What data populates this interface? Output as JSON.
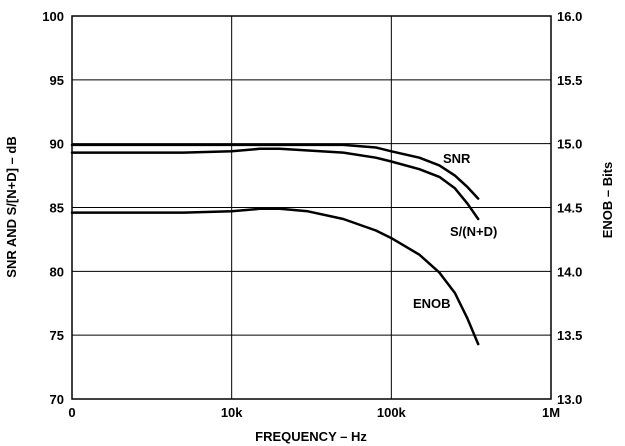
{
  "chart_data": {
    "type": "line",
    "xlabel": "FREQUENCY – Hz",
    "ylabel": "SNR AND S/[N+D] – dB",
    "y2label": "ENOB – Bits",
    "x_scale": "log",
    "xlim": [
      1000,
      1000000
    ],
    "ylim": [
      70,
      100
    ],
    "y2lim": [
      13.0,
      16.0
    ],
    "x_tick_labels": [
      "0",
      "10k",
      "100k",
      "1M"
    ],
    "y_tick_labels": [
      "70",
      "75",
      "80",
      "85",
      "90",
      "95",
      "100"
    ],
    "y2_tick_labels": [
      "13.0",
      "13.5",
      "14.0",
      "14.5",
      "15.0",
      "15.5",
      "16.0"
    ],
    "grid": true,
    "series": [
      {
        "name": "SNR",
        "axis": "left",
        "x": [
          1000,
          5000,
          10000,
          20000,
          50000,
          80000,
          100000,
          150000,
          200000,
          250000,
          300000,
          350000
        ],
        "y": [
          89.9,
          89.9,
          89.9,
          89.9,
          89.9,
          89.7,
          89.4,
          88.9,
          88.3,
          87.5,
          86.6,
          85.7
        ]
      },
      {
        "name": "S/(N+D)",
        "axis": "left",
        "x": [
          1000,
          5000,
          10000,
          15000,
          20000,
          50000,
          80000,
          100000,
          150000,
          200000,
          250000,
          300000,
          350000
        ],
        "y": [
          89.3,
          89.3,
          89.4,
          89.6,
          89.6,
          89.3,
          88.9,
          88.6,
          88.0,
          87.4,
          86.5,
          85.3,
          84.1
        ]
      },
      {
        "name": "ENOB",
        "axis": "right",
        "x": [
          1000,
          5000,
          10000,
          15000,
          20000,
          30000,
          50000,
          80000,
          100000,
          150000,
          200000,
          250000,
          300000,
          350000
        ],
        "y": [
          14.46,
          14.46,
          14.47,
          14.49,
          14.49,
          14.47,
          14.41,
          14.32,
          14.26,
          14.13,
          13.99,
          13.83,
          13.63,
          13.43
        ]
      }
    ]
  }
}
